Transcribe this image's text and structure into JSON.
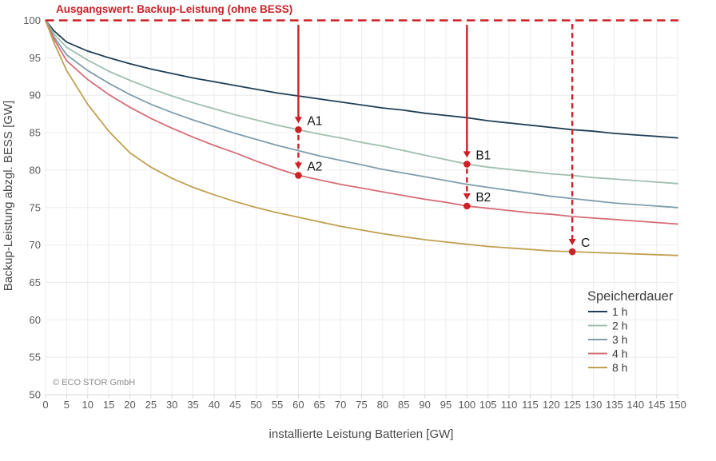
{
  "chart_data": {
    "type": "line",
    "title": "",
    "xlabel": "installierte Leistung Batterien [GW]",
    "ylabel": "Backup-Leistung abzgl. BESS [GW]",
    "xlim": [
      0,
      150
    ],
    "ylim": [
      50,
      100
    ],
    "x_tick_step": 5,
    "y_tick_step": 5,
    "grid": true,
    "legend_title": "Speicherdauer",
    "legend_position": "inside-lower-right",
    "copyright": "© ECO STOR GmbH",
    "baseline": {
      "value": 100,
      "label": "Ausgangswert: Backup-Leistung (ohne BESS)",
      "color": "#cb2127"
    },
    "x": [
      0,
      2,
      5,
      10,
      15,
      20,
      25,
      30,
      35,
      40,
      45,
      50,
      55,
      60,
      65,
      70,
      75,
      80,
      85,
      90,
      95,
      100,
      105,
      110,
      115,
      120,
      125,
      130,
      135,
      140,
      145,
      150
    ],
    "series": [
      {
        "name": "1 h",
        "color": "#203f55",
        "values": [
          100,
          98.6,
          97.1,
          95.9,
          95.0,
          94.2,
          93.5,
          92.9,
          92.3,
          91.8,
          91.3,
          90.8,
          90.3,
          89.9,
          89.5,
          89.1,
          88.7,
          88.3,
          88.0,
          87.6,
          87.3,
          87.0,
          86.6,
          86.3,
          86.0,
          85.7,
          85.4,
          85.2,
          84.9,
          84.7,
          84.5,
          84.3
        ]
      },
      {
        "name": "2 h",
        "color": "#9fbfae",
        "values": [
          100,
          98.2,
          96.4,
          94.7,
          93.2,
          92.0,
          90.9,
          89.9,
          89.0,
          88.2,
          87.4,
          86.7,
          86.0,
          85.4,
          84.8,
          84.3,
          83.7,
          83.2,
          82.6,
          82.0,
          81.4,
          80.8,
          80.4,
          80.1,
          79.8,
          79.5,
          79.3,
          79.0,
          78.8,
          78.6,
          78.4,
          78.2
        ]
      },
      {
        "name": "3 h",
        "color": "#7f9dad",
        "values": [
          100,
          97.8,
          95.4,
          93.3,
          91.6,
          90.1,
          88.8,
          87.7,
          86.7,
          85.8,
          84.9,
          84.1,
          83.3,
          82.6,
          81.9,
          81.3,
          80.7,
          80.1,
          79.6,
          79.1,
          78.6,
          78.1,
          77.7,
          77.3,
          76.9,
          76.5,
          76.2,
          75.9,
          75.6,
          75.4,
          75.2,
          75.0
        ]
      },
      {
        "name": "4 h",
        "color": "#d56d76",
        "values": [
          100,
          97.5,
          94.6,
          92.1,
          90.1,
          88.4,
          86.9,
          85.6,
          84.4,
          83.3,
          82.3,
          81.2,
          80.2,
          79.3,
          78.7,
          78.1,
          77.6,
          77.1,
          76.6,
          76.1,
          75.7,
          75.2,
          74.9,
          74.6,
          74.3,
          74.1,
          73.8,
          73.6,
          73.4,
          73.2,
          73.0,
          72.8
        ]
      },
      {
        "name": "8 h",
        "color": "#c0a151",
        "values": [
          100,
          97.0,
          93.3,
          88.8,
          85.2,
          82.3,
          80.4,
          78.9,
          77.7,
          76.7,
          75.8,
          75.0,
          74.3,
          73.7,
          73.1,
          72.5,
          72.0,
          71.5,
          71.1,
          70.7,
          70.4,
          70.1,
          69.8,
          69.6,
          69.4,
          69.2,
          69.1,
          69.0,
          68.9,
          68.8,
          68.7,
          68.6
        ]
      }
    ],
    "annotations": [
      {
        "label": "A1",
        "x": 60,
        "y": 85.4,
        "arrow": "solid",
        "from_y": 99.4
      },
      {
        "label": "A2",
        "x": 60,
        "y": 79.3,
        "arrow": "dashed",
        "from_y": 84.7
      },
      {
        "label": "B1",
        "x": 100,
        "y": 80.8,
        "arrow": "solid",
        "from_y": 99.4
      },
      {
        "label": "B2",
        "x": 100,
        "y": 75.2,
        "arrow": "dashed",
        "from_y": 80.2
      },
      {
        "label": "C",
        "x": 125,
        "y": 69.1,
        "arrow": "dashed",
        "from_y": 99.5
      }
    ],
    "colors": {
      "grid": "#ececec",
      "axis_line": "#d6d6d6",
      "tick_text": "#5a5a5a",
      "annotation_red": "#cb2127"
    }
  }
}
